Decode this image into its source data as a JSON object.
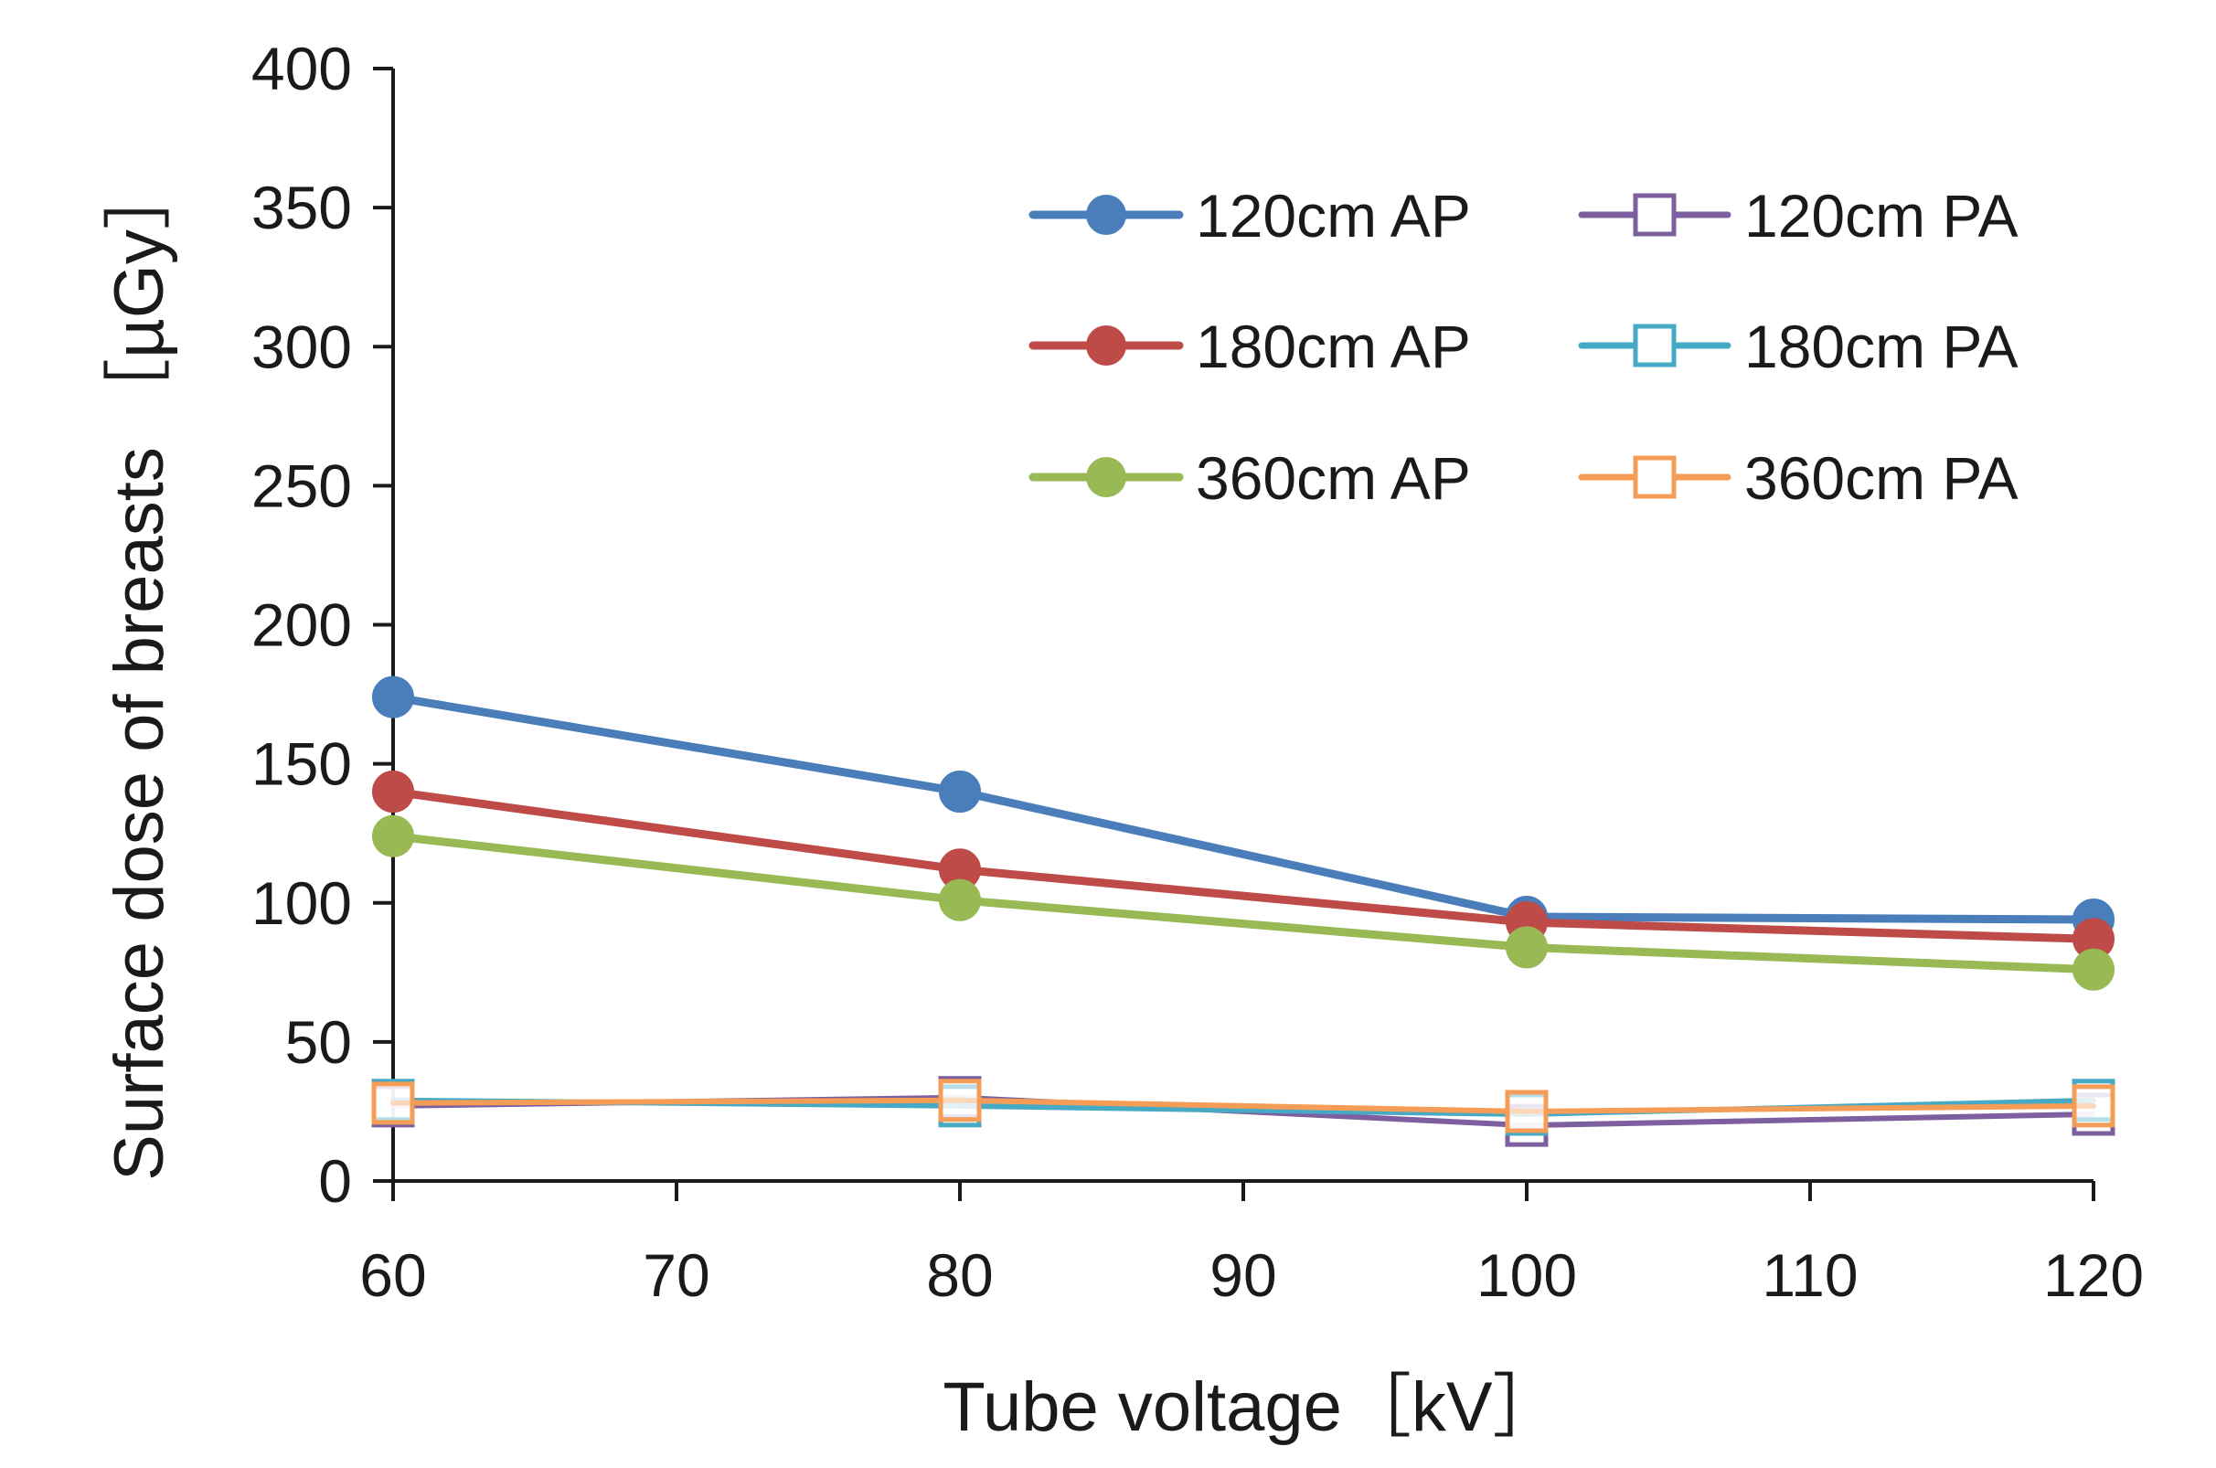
{
  "chart_data": {
    "type": "line",
    "title": "",
    "xlabel": "Tube voltage［kV］",
    "ylabel": "Surface dose of breasts ［µGy］",
    "xlim": [
      60,
      120
    ],
    "ylim": [
      0,
      400
    ],
    "xticks": [
      60,
      70,
      80,
      90,
      100,
      110,
      120
    ],
    "yticks": [
      0,
      50,
      100,
      150,
      200,
      250,
      300,
      350,
      400
    ],
    "grid": false,
    "legend_position": "top-right",
    "x": [
      60,
      80,
      100,
      120
    ],
    "series": [
      {
        "name": "120cm AP",
        "color": "#4A7EBB",
        "marker": "filled-circle",
        "values": [
          174,
          140,
          95,
          94
        ]
      },
      {
        "name": "180cm AP",
        "color": "#BE4B48",
        "marker": "filled-circle",
        "values": [
          140,
          112,
          93,
          87
        ]
      },
      {
        "name": "360cm AP",
        "color": "#98B954",
        "marker": "filled-circle",
        "values": [
          124,
          101,
          84,
          76
        ]
      },
      {
        "name": "120cm PA",
        "color": "#7D5FA0",
        "marker": "open-square",
        "values": [
          27,
          30,
          20,
          24
        ]
      },
      {
        "name": "180cm PA",
        "color": "#46AAC5",
        "marker": "open-square",
        "values": [
          29,
          27,
          24,
          29
        ]
      },
      {
        "name": "360cm PA",
        "color": "#F59D56",
        "marker": "open-square",
        "values": [
          28,
          29,
          25,
          27
        ]
      }
    ]
  }
}
